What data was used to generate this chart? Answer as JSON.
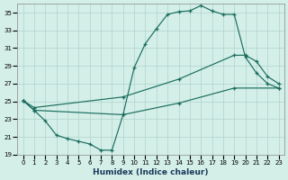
{
  "xlabel": "Humidex (Indice chaleur)",
  "bg_color": "#d4eee8",
  "grid_color": "#aed4cc",
  "line_color": "#1a6e5e",
  "xlim": [
    -0.5,
    23.5
  ],
  "ylim": [
    19,
    36
  ],
  "yticks": [
    19,
    21,
    23,
    25,
    27,
    29,
    31,
    33,
    35
  ],
  "xticks": [
    0,
    1,
    2,
    3,
    4,
    5,
    6,
    7,
    8,
    9,
    10,
    11,
    12,
    13,
    14,
    15,
    16,
    17,
    18,
    19,
    20,
    21,
    22,
    23
  ],
  "curve_top_x": [
    0,
    1,
    2,
    3,
    4,
    5,
    6,
    7,
    8,
    9,
    10,
    11,
    12,
    13,
    14,
    15,
    16,
    17,
    18,
    19,
    20,
    21,
    22,
    23
  ],
  "curve_top_y": [
    25.1,
    24.0,
    22.8,
    21.2,
    20.8,
    20.5,
    20.2,
    19.5,
    19.5,
    23.5,
    28.8,
    31.5,
    33.2,
    34.8,
    35.1,
    35.2,
    35.8,
    35.2,
    34.8,
    34.8,
    30.0,
    28.2,
    27.0,
    26.5
  ],
  "curve_mid_x": [
    0,
    1,
    9,
    14,
    19,
    20,
    21,
    22,
    23
  ],
  "curve_mid_y": [
    25.1,
    24.3,
    25.5,
    27.5,
    30.2,
    30.2,
    29.5,
    27.8,
    27.0
  ],
  "curve_low_x": [
    0,
    1,
    9,
    14,
    19,
    23
  ],
  "curve_low_y": [
    25.1,
    24.0,
    23.5,
    24.8,
    26.5,
    26.5
  ]
}
